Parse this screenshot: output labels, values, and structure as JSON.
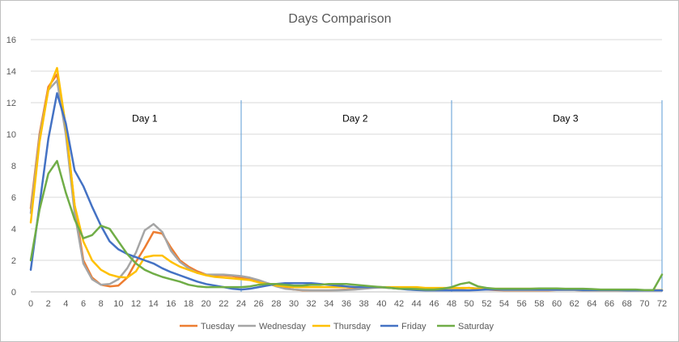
{
  "chart_data": {
    "type": "line",
    "title": "Days Comparison",
    "xlabel": "",
    "ylabel": "",
    "xlim": [
      0,
      72
    ],
    "ylim": [
      0,
      16
    ],
    "x_ticks": [
      0,
      2,
      4,
      6,
      8,
      10,
      12,
      14,
      16,
      18,
      20,
      22,
      24,
      26,
      28,
      30,
      32,
      34,
      36,
      38,
      40,
      42,
      44,
      46,
      48,
      50,
      52,
      54,
      56,
      58,
      60,
      62,
      64,
      66,
      68,
      70,
      72
    ],
    "y_ticks": [
      0,
      2,
      4,
      6,
      8,
      10,
      12,
      14,
      16
    ],
    "grid": "horizontal",
    "legend_position": "bottom",
    "annotations": [
      {
        "text": "Day 1",
        "x": 13,
        "y": 11
      },
      {
        "text": "Day 2",
        "x": 37,
        "y": 11
      },
      {
        "text": "Day 3",
        "x": 61,
        "y": 11
      }
    ],
    "vlines": [
      {
        "x": 24,
        "color": "#5b9bd5"
      },
      {
        "x": 48,
        "color": "#5b9bd5"
      },
      {
        "x": 72,
        "color": "#5b9bd5"
      }
    ],
    "x": [
      0,
      1,
      2,
      3,
      4,
      5,
      6,
      7,
      8,
      9,
      10,
      11,
      12,
      13,
      14,
      15,
      16,
      17,
      18,
      19,
      20,
      21,
      22,
      23,
      24,
      25,
      26,
      27,
      28,
      29,
      30,
      31,
      32,
      33,
      34,
      35,
      36,
      37,
      38,
      39,
      40,
      41,
      42,
      43,
      44,
      45,
      46,
      47,
      48,
      49,
      50,
      51,
      52,
      53,
      54,
      55,
      56,
      57,
      58,
      59,
      60,
      61,
      62,
      63,
      64,
      65,
      66,
      67,
      68,
      69,
      70,
      71,
      72
    ],
    "series": [
      {
        "name": "Tuesday",
        "color": "#ed7d31",
        "values": [
          5.3,
          10.0,
          13.0,
          13.8,
          10.5,
          5.5,
          2.0,
          0.9,
          0.45,
          0.35,
          0.4,
          0.9,
          1.9,
          2.8,
          3.8,
          3.7,
          2.8,
          2.0,
          1.6,
          1.3,
          1.1,
          1.05,
          1.05,
          1.0,
          0.9,
          0.85,
          0.7,
          0.55,
          0.4,
          0.25,
          0.15,
          0.1,
          0.1,
          0.1,
          0.1,
          0.12,
          0.15,
          0.2,
          0.25,
          0.28,
          0.28,
          0.25,
          0.22,
          0.2,
          0.2,
          0.2,
          0.2,
          0.2,
          0.2,
          0.22,
          0.25,
          0.2,
          0.15,
          0.12,
          0.1,
          0.1,
          0.1,
          0.1,
          0.1,
          0.1,
          0.12,
          0.12,
          0.12,
          0.1,
          0.1,
          0.1,
          0.1,
          0.1,
          0.1,
          0.1,
          0.1,
          0.1,
          0.1
        ]
      },
      {
        "name": "Wednesday",
        "color": "#a5a5a5",
        "values": [
          5.0,
          9.8,
          12.8,
          13.4,
          10.0,
          5.0,
          1.8,
          0.8,
          0.45,
          0.5,
          0.8,
          1.5,
          2.5,
          3.9,
          4.3,
          3.8,
          2.6,
          1.9,
          1.5,
          1.2,
          1.1,
          1.1,
          1.1,
          1.05,
          1.0,
          0.9,
          0.75,
          0.55,
          0.35,
          0.2,
          0.15,
          0.12,
          0.1,
          0.1,
          0.1,
          0.1,
          0.12,
          0.15,
          0.2,
          0.25,
          0.28,
          0.25,
          0.22,
          0.2,
          0.2,
          0.2,
          0.2,
          0.2,
          0.2,
          0.22,
          0.25,
          0.22,
          0.18,
          0.15,
          0.12,
          0.12,
          0.12,
          0.12,
          0.12,
          0.12,
          0.12,
          0.12,
          0.12,
          0.1,
          0.1,
          0.1,
          0.1,
          0.1,
          0.1,
          0.1,
          0.1,
          0.1,
          0.1
        ]
      },
      {
        "name": "Thursday",
        "color": "#ffc000",
        "values": [
          4.4,
          9.5,
          12.8,
          14.2,
          10.5,
          5.5,
          3.2,
          2.0,
          1.4,
          1.1,
          0.95,
          0.9,
          1.3,
          2.2,
          2.3,
          2.3,
          1.9,
          1.6,
          1.4,
          1.2,
          1.05,
          0.95,
          0.9,
          0.85,
          0.8,
          0.75,
          0.6,
          0.5,
          0.4,
          0.35,
          0.3,
          0.3,
          0.3,
          0.3,
          0.3,
          0.3,
          0.3,
          0.3,
          0.3,
          0.3,
          0.3,
          0.3,
          0.3,
          0.3,
          0.3,
          0.25,
          0.25,
          0.25,
          0.25,
          0.25,
          0.25,
          0.2,
          0.2,
          0.2,
          0.2,
          0.2,
          0.2,
          0.2,
          0.2,
          0.2,
          0.2,
          0.18,
          0.18,
          0.15,
          0.15,
          0.12,
          0.12,
          0.12,
          0.12,
          0.12,
          0.12,
          0.12,
          0.12
        ]
      },
      {
        "name": "Friday",
        "color": "#4472c4",
        "values": [
          1.4,
          5.5,
          9.7,
          12.6,
          10.7,
          7.7,
          6.7,
          5.4,
          4.2,
          3.2,
          2.7,
          2.4,
          2.2,
          2.0,
          1.8,
          1.5,
          1.25,
          1.05,
          0.85,
          0.65,
          0.5,
          0.4,
          0.3,
          0.2,
          0.15,
          0.2,
          0.3,
          0.4,
          0.5,
          0.55,
          0.55,
          0.55,
          0.55,
          0.5,
          0.45,
          0.4,
          0.35,
          0.3,
          0.3,
          0.3,
          0.3,
          0.25,
          0.2,
          0.15,
          0.12,
          0.1,
          0.1,
          0.1,
          0.1,
          0.1,
          0.1,
          0.12,
          0.15,
          0.15,
          0.15,
          0.15,
          0.15,
          0.15,
          0.15,
          0.15,
          0.15,
          0.15,
          0.15,
          0.12,
          0.12,
          0.12,
          0.12,
          0.12,
          0.1,
          0.1,
          0.1,
          0.1,
          0.1
        ]
      },
      {
        "name": "Saturday",
        "color": "#70ad47",
        "values": [
          2.0,
          5.2,
          7.5,
          8.3,
          6.3,
          4.6,
          3.4,
          3.6,
          4.2,
          4.0,
          3.2,
          2.4,
          1.8,
          1.4,
          1.15,
          0.95,
          0.8,
          0.65,
          0.45,
          0.35,
          0.3,
          0.3,
          0.3,
          0.3,
          0.3,
          0.35,
          0.45,
          0.5,
          0.5,
          0.45,
          0.4,
          0.4,
          0.45,
          0.45,
          0.5,
          0.5,
          0.5,
          0.45,
          0.4,
          0.35,
          0.3,
          0.25,
          0.2,
          0.2,
          0.18,
          0.15,
          0.15,
          0.2,
          0.3,
          0.5,
          0.6,
          0.35,
          0.25,
          0.2,
          0.2,
          0.2,
          0.2,
          0.2,
          0.22,
          0.22,
          0.22,
          0.2,
          0.2,
          0.2,
          0.18,
          0.15,
          0.15,
          0.15,
          0.15,
          0.15,
          0.12,
          0.12,
          1.1
        ]
      }
    ]
  }
}
